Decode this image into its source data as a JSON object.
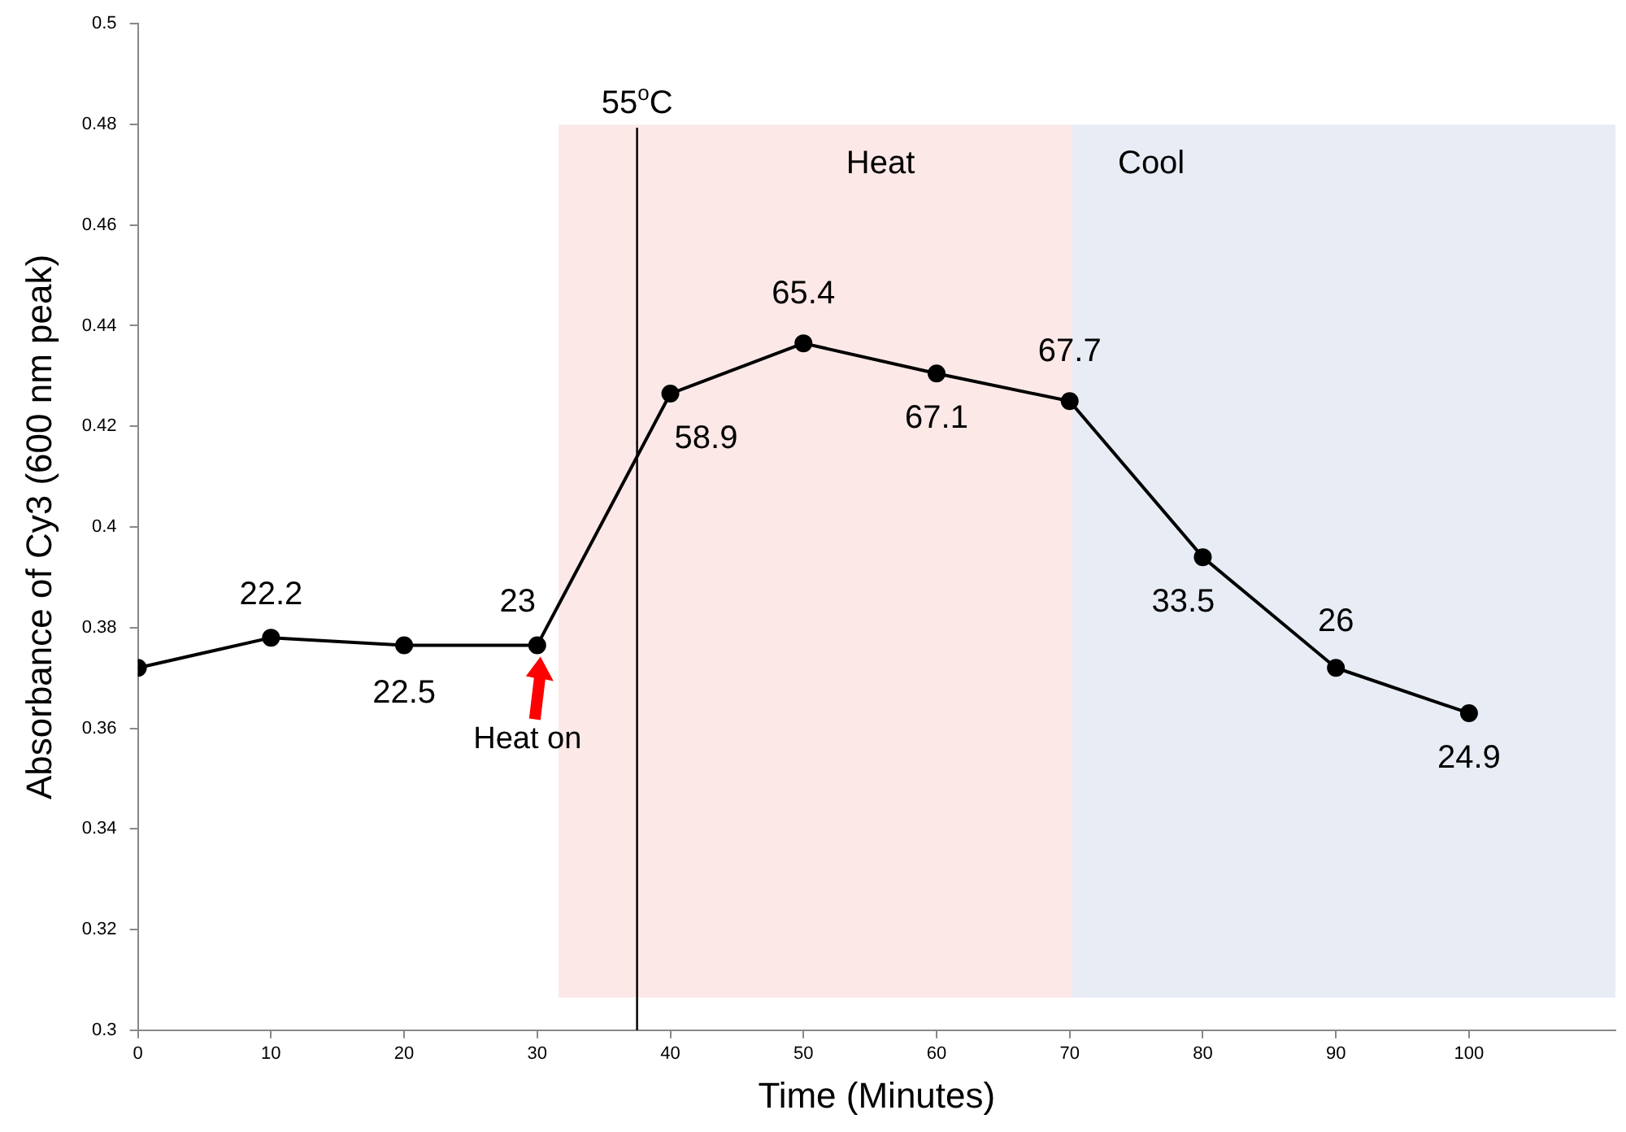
{
  "chart_data": {
    "type": "line",
    "xlabel": "Time (Minutes)",
    "ylabel": "Absorbance of Cy3 (600 nm peak)",
    "x": [
      0,
      10,
      20,
      30,
      40,
      50,
      60,
      70,
      80,
      90,
      100
    ],
    "series": [
      {
        "color": "#000000",
        "values": [
          0.372,
          0.378,
          0.3765,
          0.3765,
          0.4265,
          0.4365,
          0.4305,
          0.425,
          0.394,
          0.372,
          0.363
        ]
      }
    ],
    "xlim": [
      0,
      111
    ],
    "xticks": [
      0,
      10,
      20,
      30,
      40,
      50,
      60,
      70,
      80,
      90,
      100
    ],
    "ylim": [
      0.3,
      0.5
    ],
    "yticks": [
      0.3,
      0.32,
      0.34,
      0.36,
      0.38,
      0.4,
      0.42,
      0.44,
      0.46,
      0.48,
      0.5
    ],
    "grid": false,
    "legend": false,
    "marker": "circle",
    "line_style": "solid",
    "bands": [
      {
        "axis": "x",
        "from": 31.6,
        "to": 70.2,
        "label": "Heat",
        "color": "#fde8e8"
      },
      {
        "axis": "x",
        "from": 70.2,
        "to": 111,
        "label": "Cool",
        "color": "#e8edf5"
      }
    ],
    "ref_lines": [
      {
        "axis": "x",
        "value": 37.5,
        "label": "55$^{o}$C",
        "color": "#000000"
      }
    ],
    "annotations": [
      {
        "text": "22.2",
        "x": 10,
        "y": 0.378
      },
      {
        "text": "22.5",
        "x": 20,
        "y": 0.3765
      },
      {
        "text": "23",
        "x": 30,
        "y": 0.3765
      },
      {
        "text": "58.9",
        "x": 40,
        "y": 0.4265
      },
      {
        "text": "65.4",
        "x": 50,
        "y": 0.4365
      },
      {
        "text": "67.1",
        "x": 60,
        "y": 0.4305
      },
      {
        "text": "67.7",
        "x": 70,
        "y": 0.425
      },
      {
        "text": "33.5",
        "x": 80,
        "y": 0.394
      },
      {
        "text": "26",
        "x": 90,
        "y": 0.372
      },
      {
        "text": "24.9",
        "x": 100,
        "y": 0.363
      },
      {
        "text": "Heat on",
        "x": 30,
        "y": 0.3765
      }
    ]
  }
}
